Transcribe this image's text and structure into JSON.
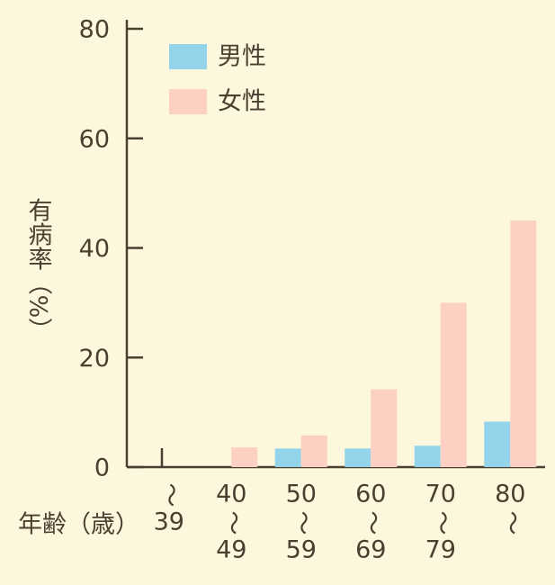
{
  "chart_data": {
    "type": "bar",
    "y_label": "有病率（%）",
    "x_label": "年齢（歳）",
    "categories": [
      [
        "〜",
        "39"
      ],
      [
        "40",
        "〜",
        "49"
      ],
      [
        "50",
        "〜",
        "59"
      ],
      [
        "60",
        "〜",
        "69"
      ],
      [
        "70",
        "〜",
        "79"
      ],
      [
        "80",
        "〜"
      ]
    ],
    "series": [
      {
        "name": "男性",
        "color": "#93d4ea",
        "values": [
          null,
          null,
          3.4,
          3.4,
          3.9,
          8.3
        ]
      },
      {
        "name": "女性",
        "color": "#fdd0c4",
        "values": [
          null,
          3.6,
          5.8,
          14.2,
          30,
          45
        ]
      }
    ],
    "ylim": [
      0,
      80
    ],
    "yticks": [
      0,
      20,
      40,
      60,
      80
    ],
    "legend": "top-left"
  }
}
